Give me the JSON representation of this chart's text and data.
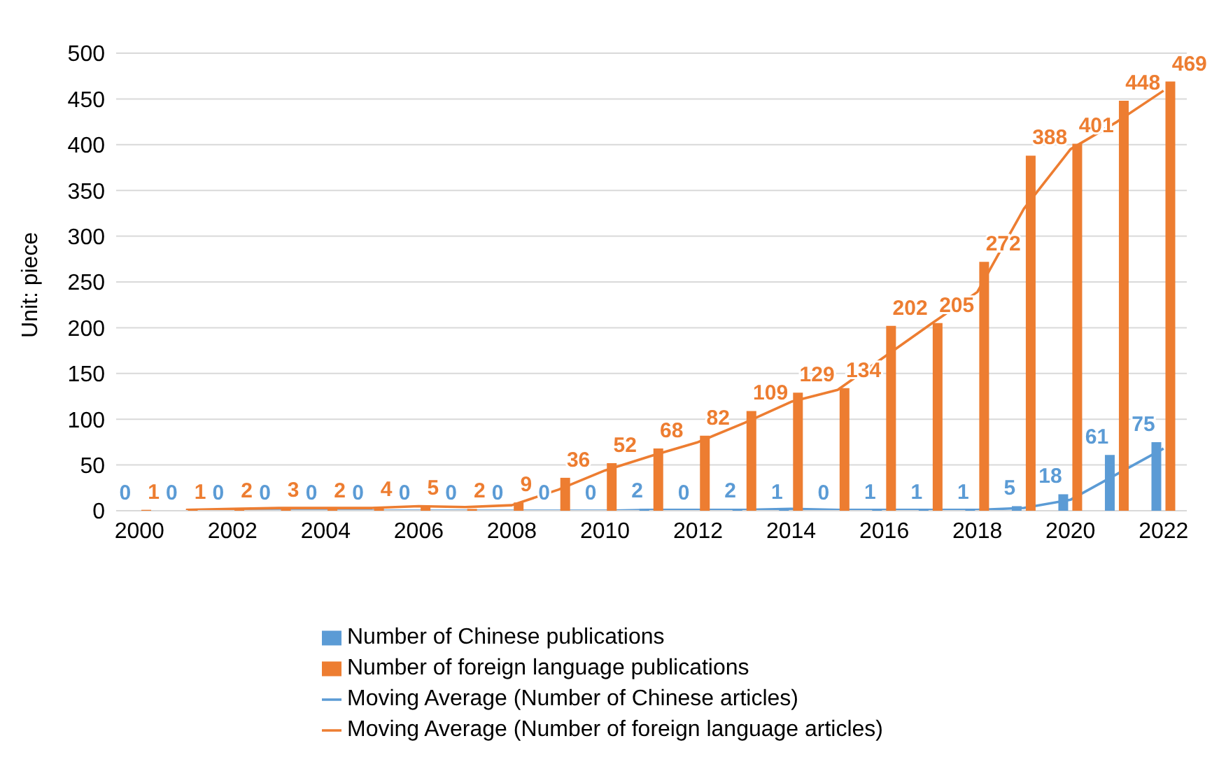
{
  "chart_data": {
    "type": "bar",
    "ylabel": "Unit: piece",
    "categories": [
      "2000",
      null,
      "2002",
      null,
      "2004",
      null,
      "2006",
      null,
      "2008",
      null,
      "2010",
      null,
      "2012",
      null,
      "2014",
      null,
      "2016",
      null,
      "2018",
      null,
      "2020",
      null,
      "2022"
    ],
    "series": [
      {
        "name": "Number of Chinese publications",
        "color": "#5b9bd5",
        "values": [
          0,
          0,
          0,
          0,
          0,
          0,
          0,
          0,
          0,
          0,
          0,
          2,
          0,
          2,
          1,
          0,
          1,
          1,
          1,
          5,
          18,
          61,
          75
        ],
        "value_labels": [
          "0",
          "0",
          "0",
          "0",
          "0",
          "0",
          "0",
          "0",
          "0",
          "0",
          "0",
          "2",
          "0",
          "2",
          "1",
          "0",
          "1",
          "1",
          "1",
          "5",
          "18",
          "61",
          "75"
        ]
      },
      {
        "name": "Number of foreign language publications",
        "color": "#ed7d31",
        "values": [
          1,
          1,
          2,
          3,
          2,
          4,
          5,
          2,
          9,
          36,
          52,
          68,
          82,
          109,
          129,
          134,
          202,
          205,
          272,
          388,
          401,
          448,
          469
        ],
        "value_labels": [
          "1",
          "1",
          "2",
          "3",
          "2",
          "4",
          "5",
          "2",
          "9",
          "36",
          "52",
          "68",
          "82",
          "109",
          "129",
          "134",
          "202",
          "205",
          "272",
          "388",
          "401",
          "448",
          "469"
        ]
      },
      {
        "name": "Moving Average (Number of Chinese articles)",
        "type": "line",
        "color": "#5b9bd5",
        "values": [
          null,
          0,
          0,
          0,
          0,
          0,
          0,
          0,
          0,
          0,
          0,
          1,
          1,
          1,
          2,
          1,
          1,
          1,
          1,
          3,
          12,
          40,
          68
        ]
      },
      {
        "name": "Moving Average (Number of foreign language articles)",
        "type": "line",
        "color": "#ed7d31",
        "values": [
          null,
          1,
          2,
          3,
          3,
          3,
          5,
          4,
          6,
          23,
          44,
          60,
          75,
          96,
          119,
          132,
          168,
          204,
          239,
          330,
          395,
          425,
          459
        ]
      }
    ],
    "ylim": [
      0,
      500
    ],
    "yticks": [
      0,
      50,
      100,
      150,
      200,
      250,
      300,
      350,
      400,
      450,
      500
    ],
    "grid": "y",
    "legend": "bottom",
    "marker": "none",
    "line_style": "solid"
  }
}
